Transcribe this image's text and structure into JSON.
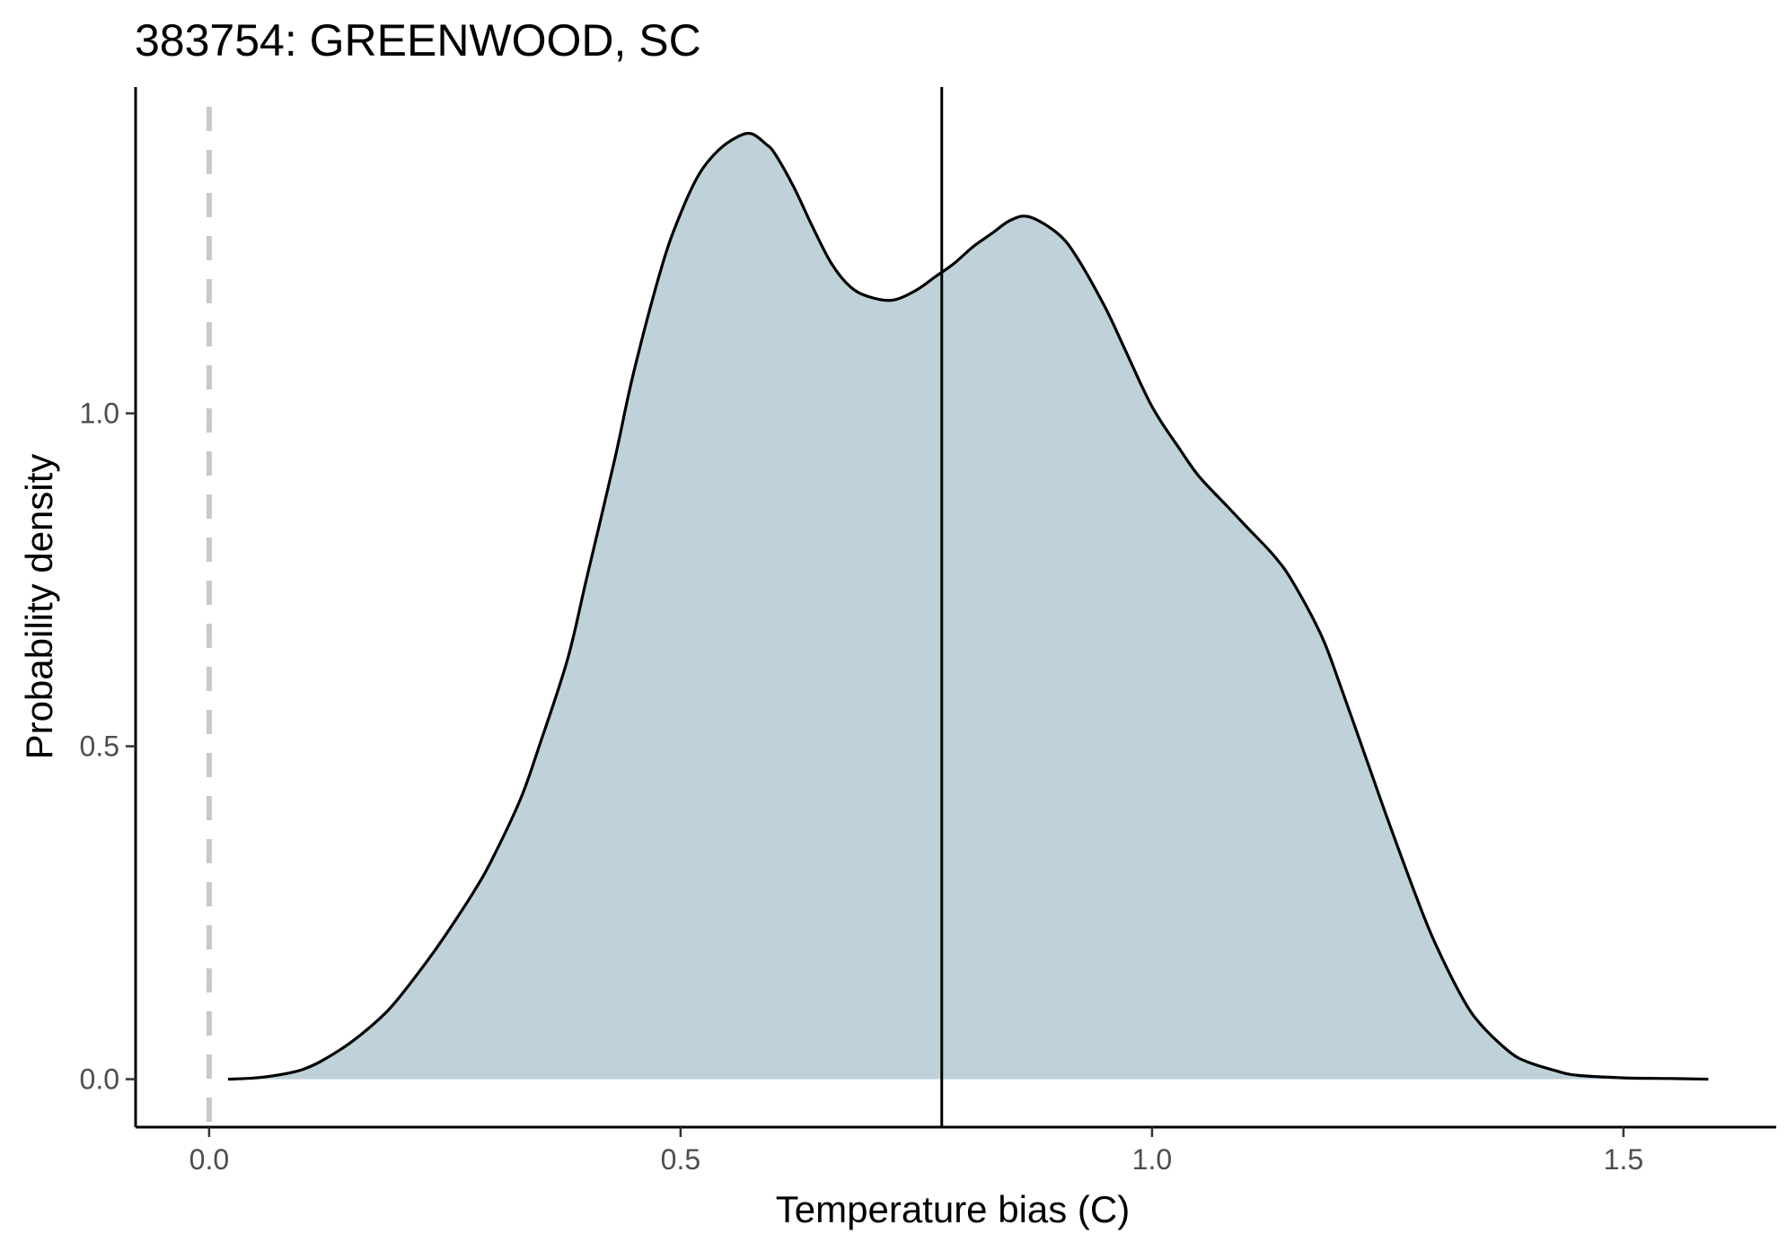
{
  "chart_data": {
    "type": "area",
    "title": "383754: GREENWOOD, SC",
    "xlabel": "Temperature bias (C)",
    "ylabel": "Probability density",
    "xlim": [
      -0.078,
      1.662
    ],
    "ylim": [
      -0.072,
      1.49
    ],
    "x_ticks": [
      0.0,
      0.5,
      1.0,
      1.5
    ],
    "x_tick_labels": [
      "0.0",
      "0.5",
      "1.0",
      "1.5"
    ],
    "y_ticks": [
      0.0,
      0.5,
      1.0
    ],
    "y_tick_labels": [
      "0.0",
      "0.5",
      "1.0"
    ],
    "grid": false,
    "legend": "none",
    "reference_line_x": 0.0,
    "mean_line_x": 0.777,
    "colors": {
      "fill": "#bfd2da",
      "curve": "#000000",
      "reference_line": "#c8c8c8",
      "mean_line": "#000000"
    },
    "series": [
      {
        "x": [
          0.02,
          0.05,
          0.08,
          0.1,
          0.12,
          0.15,
          0.18,
          0.2,
          0.23,
          0.25,
          0.28,
          0.3,
          0.33,
          0.35,
          0.38,
          0.4,
          0.43,
          0.45,
          0.48,
          0.5,
          0.52,
          0.54,
          0.56,
          0.575,
          0.59,
          0.6,
          0.62,
          0.64,
          0.66,
          0.68,
          0.7,
          0.725,
          0.75,
          0.77,
          0.79,
          0.81,
          0.83,
          0.85,
          0.87,
          0.9,
          0.92,
          0.95,
          0.97,
          1.0,
          1.03,
          1.05,
          1.08,
          1.1,
          1.13,
          1.15,
          1.18,
          1.2,
          1.23,
          1.25,
          1.28,
          1.3,
          1.33,
          1.35,
          1.38,
          1.4,
          1.43,
          1.45,
          1.5,
          1.55,
          1.59
        ],
        "y": [
          0.0,
          0.002,
          0.008,
          0.015,
          0.028,
          0.055,
          0.09,
          0.12,
          0.175,
          0.215,
          0.28,
          0.33,
          0.42,
          0.5,
          0.63,
          0.75,
          0.93,
          1.06,
          1.22,
          1.3,
          1.36,
          1.395,
          1.415,
          1.42,
          1.405,
          1.39,
          1.34,
          1.28,
          1.225,
          1.19,
          1.175,
          1.17,
          1.185,
          1.205,
          1.225,
          1.25,
          1.27,
          1.29,
          1.295,
          1.27,
          1.235,
          1.16,
          1.1,
          1.01,
          0.945,
          0.905,
          0.86,
          0.83,
          0.785,
          0.745,
          0.665,
          0.59,
          0.47,
          0.39,
          0.275,
          0.205,
          0.12,
          0.08,
          0.04,
          0.025,
          0.012,
          0.006,
          0.002,
          0.001,
          0.0
        ]
      }
    ]
  }
}
